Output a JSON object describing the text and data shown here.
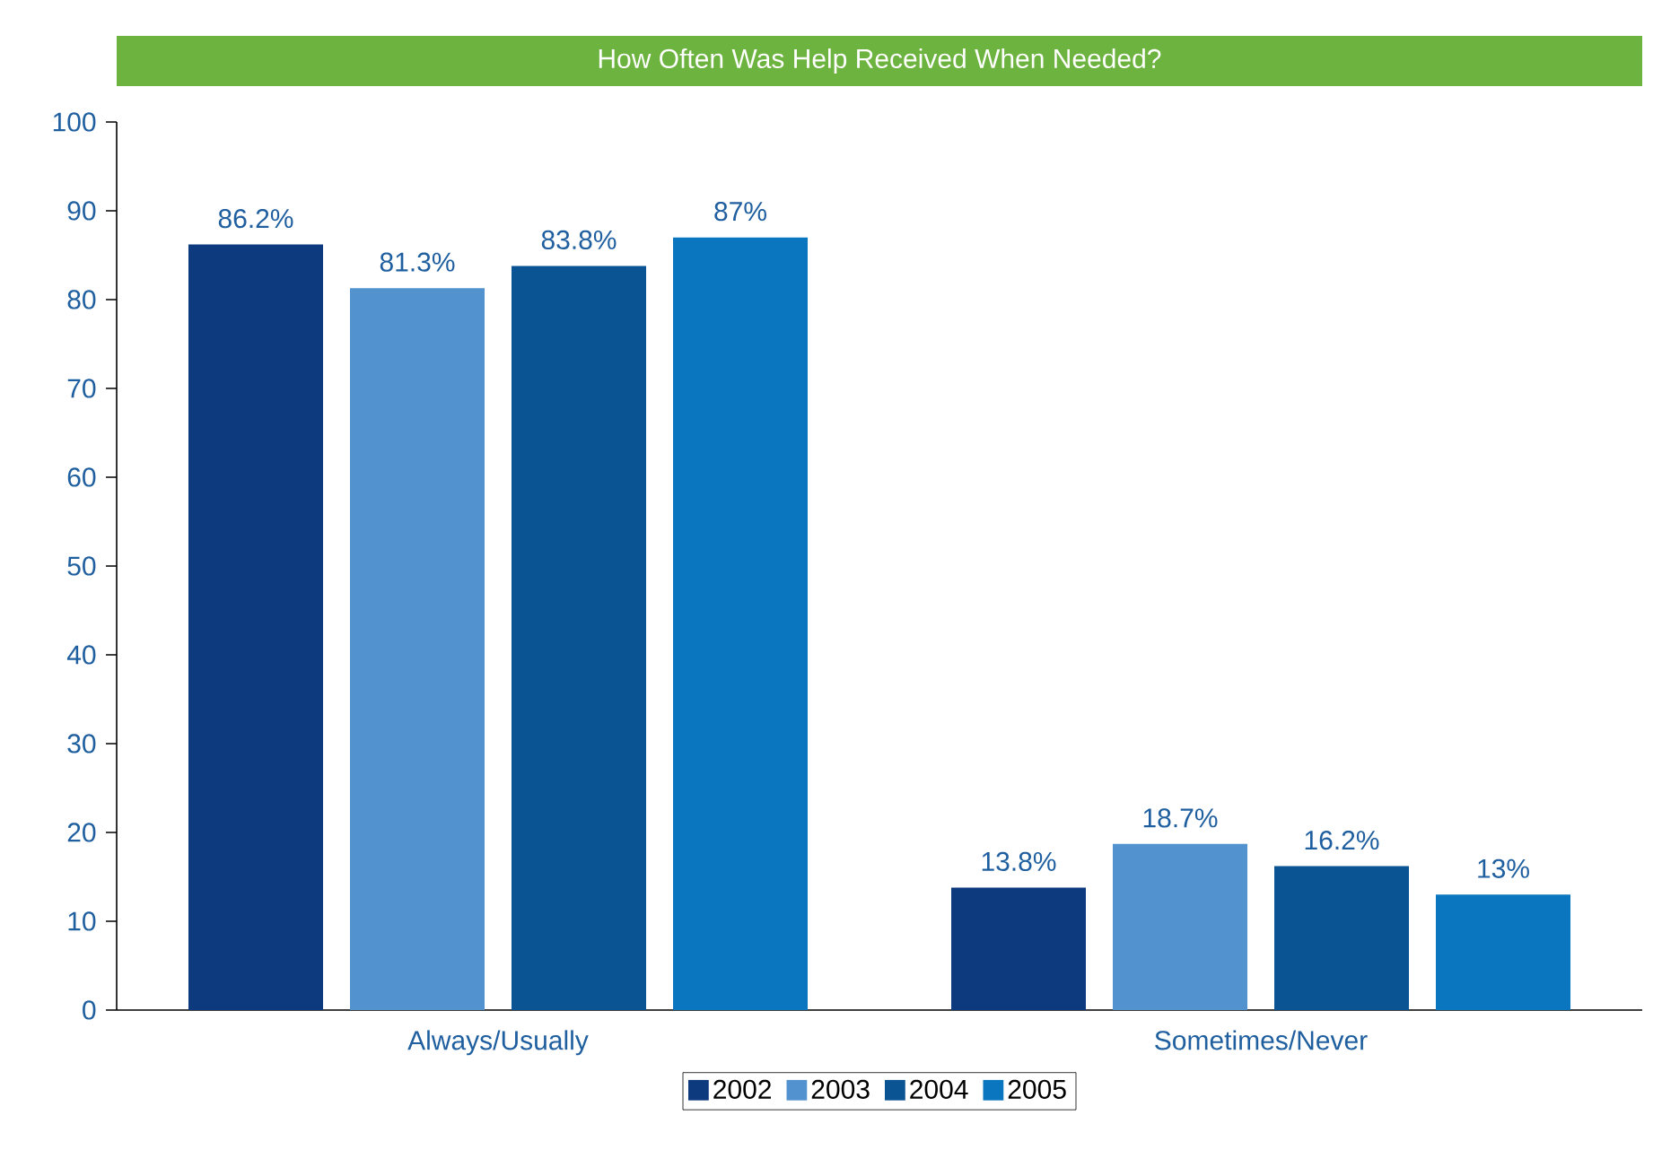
{
  "chart_data": {
    "type": "bar",
    "title": "How Often Was Help Received When Needed?",
    "categories": [
      "Always/Usually",
      "Sometimes/Never"
    ],
    "series": [
      {
        "name": "2002",
        "color": "#0d3a7e",
        "values": [
          86.2,
          13.8
        ],
        "value_labels": [
          "86.2%",
          "13.8%"
        ]
      },
      {
        "name": "2003",
        "color": "#5192cf",
        "values": [
          81.3,
          18.7
        ],
        "value_labels": [
          "81.3%",
          "18.7%"
        ]
      },
      {
        "name": "2004",
        "color": "#0b5493",
        "values": [
          83.8,
          16.2
        ],
        "value_labels": [
          "83.8%",
          "16.2%"
        ]
      },
      {
        "name": "2005",
        "color": "#0a76bf",
        "values": [
          87,
          13
        ],
        "value_labels": [
          "87%",
          "13%"
        ]
      }
    ],
    "ylim": [
      0,
      100
    ],
    "yticks": [
      0,
      10,
      20,
      30,
      40,
      50,
      60,
      70,
      80,
      90,
      100
    ],
    "grid": false,
    "legend": "bottom"
  }
}
